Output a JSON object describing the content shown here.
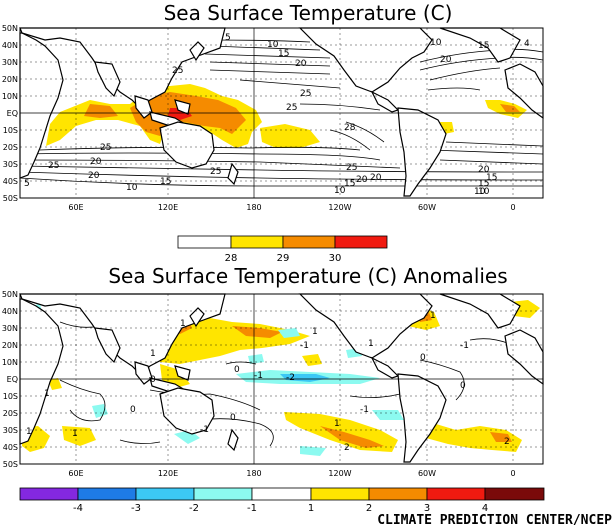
{
  "colors": {
    "sst_28_29": "#ffe500",
    "sst_29_30": "#f58b00",
    "sst_30_plus": "#f01a10",
    "anom_pos1": "#ffe500",
    "anom_pos2": "#f58b00",
    "anom_pos3": "#f01a10",
    "anom_pos4": "#7a0a0a",
    "anom_neg1": "#8cfaf0",
    "anom_neg2": "#3cc8f5",
    "anom_neg3": "#1e7be6",
    "anom_neg4": "#8428e0"
  },
  "panel_top": {
    "title": "Sea Surface Temperature (C)",
    "contour_labels": [
      "10",
      "15",
      "20",
      "25",
      "25",
      "20",
      "15",
      "10",
      "5",
      "25",
      "20",
      "15",
      "10",
      "28",
      "25",
      "20",
      "25",
      "25",
      "20",
      "15",
      "10",
      "10",
      "15",
      "20",
      "25",
      "20",
      "15",
      "10",
      "5",
      "4"
    ],
    "colorbar": {
      "labels": [
        "28",
        "29",
        "30"
      ],
      "colors": [
        "#ffffff",
        "#ffe500",
        "#f58b00",
        "#f01a10"
      ]
    }
  },
  "panel_bottom": {
    "title": "Sea Surface Temperature (C) Anomalies",
    "contour_labels": [
      "1",
      "-1",
      "1",
      "0",
      "-1",
      "-2",
      "0",
      "1",
      "0",
      "-1",
      "1",
      "2",
      "-1",
      "1",
      "2",
      "0",
      "1",
      "-1",
      "1",
      "1",
      "0",
      "1",
      "0"
    ],
    "colorbar": {
      "labels": [
        "-4",
        "-3",
        "-2",
        "-1",
        "1",
        "2",
        "3",
        "4"
      ],
      "colors": [
        "#8428e0",
        "#1e7be6",
        "#3cc8f5",
        "#8cfaf0",
        "#ffffff",
        "#ffe500",
        "#f58b00",
        "#f01a10",
        "#7a0a0a"
      ]
    }
  },
  "lat_labels": [
    "50N",
    "40N",
    "30N",
    "20N",
    "10N",
    "EQ",
    "10S",
    "20S",
    "30S",
    "40S",
    "50S"
  ],
  "lon_labels": [
    "60E",
    "120E",
    "180",
    "120W",
    "60W",
    "0"
  ],
  "credit": "CLIMATE PREDICTION CENTER/NCEP"
}
